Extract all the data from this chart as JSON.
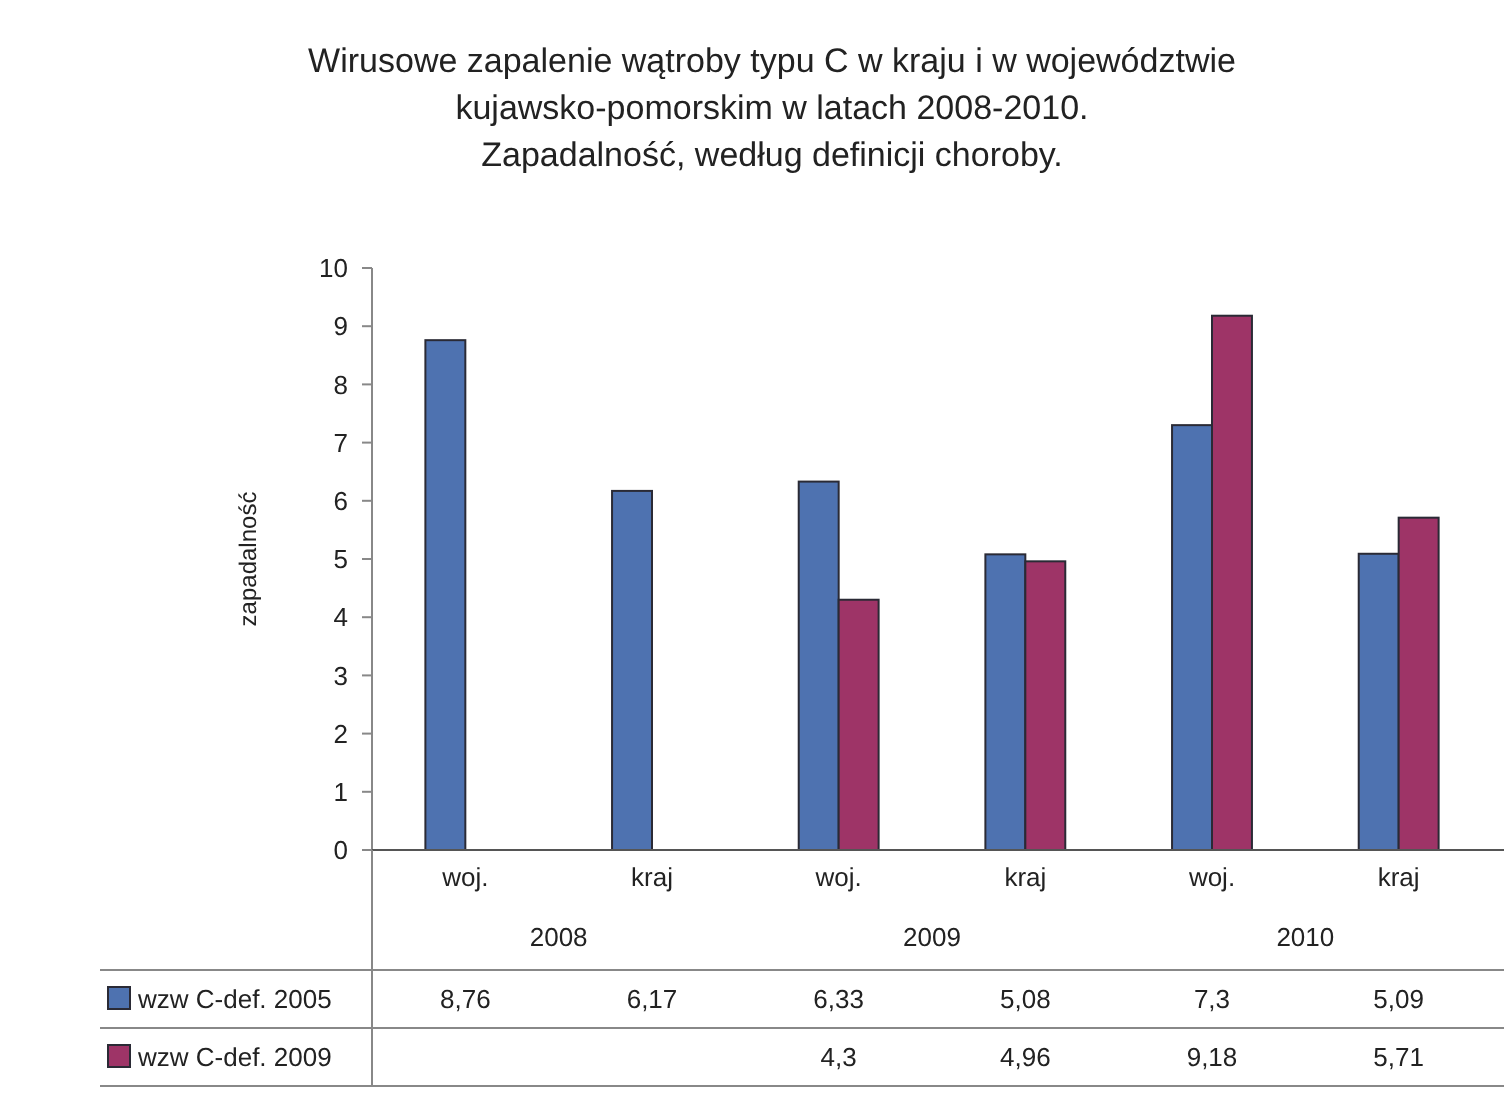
{
  "chart_data": {
    "type": "bar",
    "title": "Wirusowe zapalenie wątroby typu C w kraju i w województwie kujawsko-pomorskim w latach 2008-2010.",
    "subtitle": "Zapadalność, według definicji choroby.",
    "ylabel": "zapadalność",
    "categories": [
      "woj.",
      "kraj",
      "woj.",
      "kraj",
      "woj.",
      "kraj"
    ],
    "annotations": [
      "2008",
      "2009",
      "2010"
    ],
    "series": [
      {
        "name": "wzw C-def. 2005",
        "color": "#4e72b0",
        "values": [
          8.76,
          6.17,
          6.33,
          5.08,
          7.3,
          5.09
        ],
        "value_labels": [
          "8,76",
          "6,17",
          "6,33",
          "5,08",
          "7,3",
          "5,09"
        ]
      },
      {
        "name": "wzw C-def. 2009",
        "color": "#9e3467",
        "values": [
          null,
          null,
          4.3,
          4.96,
          9.18,
          5.71
        ],
        "value_labels": [
          null,
          null,
          "4,3",
          "4,96",
          "9,18",
          "5,71"
        ]
      }
    ],
    "ylim": [
      0,
      10
    ],
    "yticks": [
      0,
      1,
      2,
      3,
      4,
      5,
      6,
      7,
      8,
      9,
      10
    ],
    "grid": false,
    "legend": "bottom left"
  }
}
